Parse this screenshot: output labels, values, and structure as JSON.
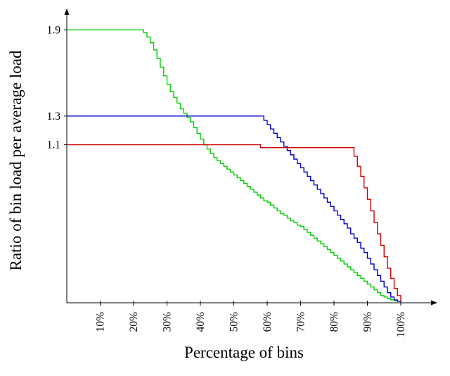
{
  "chart_data": {
    "type": "line",
    "title": "",
    "xlabel": "Percentage of bins",
    "ylabel": "Ratio of bin load per average load",
    "xlim": [
      0,
      110
    ],
    "ylim": [
      0,
      2.0
    ],
    "grid": false,
    "legend": "none",
    "step": "after",
    "axis_color": "#000000",
    "xticks": [
      10,
      20,
      30,
      40,
      50,
      60,
      70,
      80,
      90,
      100
    ],
    "xtick_labels": [
      "10%",
      "20%",
      "30%",
      "40%",
      "50%",
      "60%",
      "70%",
      "80%",
      "90%",
      "100%"
    ],
    "yticks": [
      1.1,
      1.3,
      1.9
    ],
    "ytick_labels": [
      "1.1",
      "1.3",
      "1.9"
    ],
    "series": [
      {
        "name": "green-series",
        "color": "#00cf00",
        "points": [
          [
            0,
            1.9
          ],
          [
            22,
            1.9
          ],
          [
            23,
            1.88
          ],
          [
            24,
            1.85
          ],
          [
            25,
            1.81
          ],
          [
            26,
            1.76
          ],
          [
            27,
            1.7
          ],
          [
            28,
            1.64
          ],
          [
            29,
            1.58
          ],
          [
            30,
            1.52
          ],
          [
            31,
            1.47
          ],
          [
            32,
            1.43
          ],
          [
            33,
            1.39
          ],
          [
            34,
            1.35
          ],
          [
            35,
            1.32
          ],
          [
            36,
            1.29
          ],
          [
            37,
            1.26
          ],
          [
            38,
            1.22
          ],
          [
            39,
            1.18
          ],
          [
            40,
            1.14
          ],
          [
            41,
            1.1
          ],
          [
            42,
            1.07
          ],
          [
            43,
            1.04
          ],
          [
            44,
            1.01
          ],
          [
            45,
            0.99
          ],
          [
            46,
            0.97
          ],
          [
            47,
            0.95
          ],
          [
            48,
            0.93
          ],
          [
            49,
            0.91
          ],
          [
            50,
            0.89
          ],
          [
            51,
            0.87
          ],
          [
            52,
            0.85
          ],
          [
            53,
            0.83
          ],
          [
            54,
            0.81
          ],
          [
            55,
            0.79
          ],
          [
            56,
            0.77
          ],
          [
            57,
            0.75
          ],
          [
            58,
            0.73
          ],
          [
            59,
            0.71
          ],
          [
            60,
            0.7
          ],
          [
            61,
            0.68
          ],
          [
            62,
            0.66
          ],
          [
            63,
            0.64
          ],
          [
            64,
            0.62
          ],
          [
            65,
            0.61
          ],
          [
            66,
            0.59
          ],
          [
            67,
            0.57
          ],
          [
            68,
            0.56
          ],
          [
            69,
            0.54
          ],
          [
            70,
            0.53
          ],
          [
            71,
            0.51
          ],
          [
            72,
            0.49
          ],
          [
            73,
            0.47
          ],
          [
            74,
            0.45
          ],
          [
            75,
            0.43
          ],
          [
            76,
            0.41
          ],
          [
            77,
            0.39
          ],
          [
            78,
            0.37
          ],
          [
            79,
            0.35
          ],
          [
            80,
            0.33
          ],
          [
            81,
            0.31
          ],
          [
            82,
            0.29
          ],
          [
            83,
            0.27
          ],
          [
            84,
            0.25
          ],
          [
            85,
            0.23
          ],
          [
            86,
            0.21
          ],
          [
            87,
            0.19
          ],
          [
            88,
            0.17
          ],
          [
            89,
            0.15
          ],
          [
            90,
            0.13
          ],
          [
            91,
            0.11
          ],
          [
            92,
            0.09
          ],
          [
            93,
            0.07
          ],
          [
            94,
            0.05
          ],
          [
            95,
            0.04
          ],
          [
            96,
            0.03
          ],
          [
            97,
            0.02
          ],
          [
            98,
            0.015
          ],
          [
            99,
            0.01
          ],
          [
            100,
            0.005
          ]
        ]
      },
      {
        "name": "blue-series",
        "color": "#0000d0",
        "points": [
          [
            0,
            1.3
          ],
          [
            58,
            1.3
          ],
          [
            59,
            1.27
          ],
          [
            60,
            1.24
          ],
          [
            61,
            1.21
          ],
          [
            62,
            1.18
          ],
          [
            63,
            1.15
          ],
          [
            64,
            1.12
          ],
          [
            65,
            1.09
          ],
          [
            66,
            1.06
          ],
          [
            67,
            1.03
          ],
          [
            68,
            1.0
          ],
          [
            69,
            0.97
          ],
          [
            70,
            0.94
          ],
          [
            71,
            0.91
          ],
          [
            72,
            0.88
          ],
          [
            73,
            0.85
          ],
          [
            74,
            0.82
          ],
          [
            75,
            0.79
          ],
          [
            76,
            0.76
          ],
          [
            77,
            0.73
          ],
          [
            78,
            0.7
          ],
          [
            79,
            0.67
          ],
          [
            80,
            0.64
          ],
          [
            81,
            0.61
          ],
          [
            82,
            0.58
          ],
          [
            83,
            0.55
          ],
          [
            84,
            0.52
          ],
          [
            85,
            0.48
          ],
          [
            86,
            0.45
          ],
          [
            87,
            0.42
          ],
          [
            88,
            0.38
          ],
          [
            89,
            0.35
          ],
          [
            90,
            0.31
          ],
          [
            91,
            0.27
          ],
          [
            92,
            0.23
          ],
          [
            93,
            0.19
          ],
          [
            94,
            0.15
          ],
          [
            95,
            0.11
          ],
          [
            96,
            0.07
          ],
          [
            97,
            0.04
          ],
          [
            98,
            0.02
          ],
          [
            99,
            0.01
          ],
          [
            100,
            0.005
          ]
        ]
      },
      {
        "name": "red-series",
        "color": "#d00000",
        "points": [
          [
            0,
            1.1
          ],
          [
            57,
            1.1
          ],
          [
            58,
            1.08
          ],
          [
            85,
            1.08
          ],
          [
            86,
            1.02
          ],
          [
            87,
            0.95
          ],
          [
            88,
            0.88
          ],
          [
            89,
            0.8
          ],
          [
            90,
            0.72
          ],
          [
            91,
            0.64
          ],
          [
            92,
            0.56
          ],
          [
            93,
            0.48
          ],
          [
            94,
            0.4
          ],
          [
            95,
            0.32
          ],
          [
            96,
            0.24
          ],
          [
            97,
            0.17
          ],
          [
            98,
            0.1
          ],
          [
            99,
            0.05
          ],
          [
            100,
            0.01
          ]
        ]
      }
    ]
  }
}
